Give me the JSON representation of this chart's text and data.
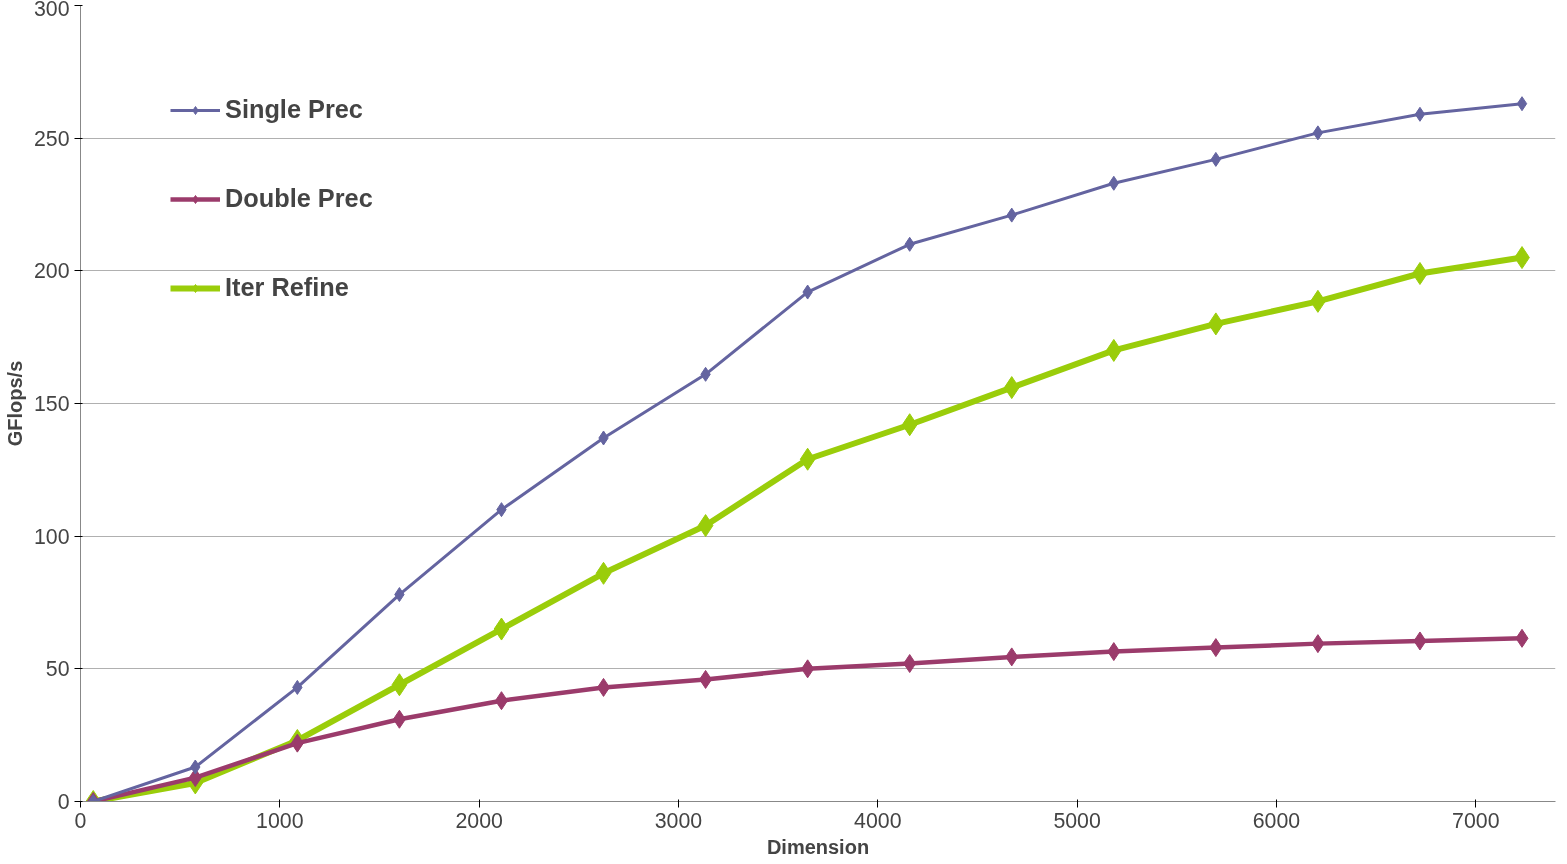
{
  "chart_data": {
    "type": "line",
    "xlabel": "Dimension",
    "ylabel": "GFlops/s",
    "x": [
      64,
      576,
      1088,
      1600,
      2112,
      2624,
      3136,
      3648,
      4160,
      4672,
      5184,
      5696,
      6208,
      6720,
      7232
    ],
    "series": [
      {
        "name": "Single Prec",
        "color": "#6464a0",
        "values": [
          0,
          13,
          43,
          78,
          110,
          137,
          161,
          192,
          210,
          221,
          233,
          242,
          252,
          259,
          263
        ]
      },
      {
        "name": "Double Prec",
        "color": "#9b3b6b",
        "values": [
          0,
          9,
          22,
          31,
          38,
          43,
          46,
          50,
          52,
          54.5,
          56.5,
          58,
          59.5,
          60.5,
          61.5
        ]
      },
      {
        "name": "Iter Refine",
        "color": "#9acd0a",
        "values": [
          0,
          7,
          23,
          44,
          65,
          86,
          104,
          129,
          142,
          156,
          170,
          180,
          188.5,
          199,
          205
        ]
      }
    ],
    "xlim": [
      0,
      7400
    ],
    "ylim": [
      0,
      300
    ],
    "xticks": [
      0,
      1000,
      2000,
      3000,
      4000,
      5000,
      6000,
      7000
    ],
    "yticks": [
      0,
      50,
      100,
      150,
      200,
      250,
      300
    ],
    "grid": "y",
    "legend": "top left",
    "marker": "diamond",
    "line_style": "solid"
  }
}
